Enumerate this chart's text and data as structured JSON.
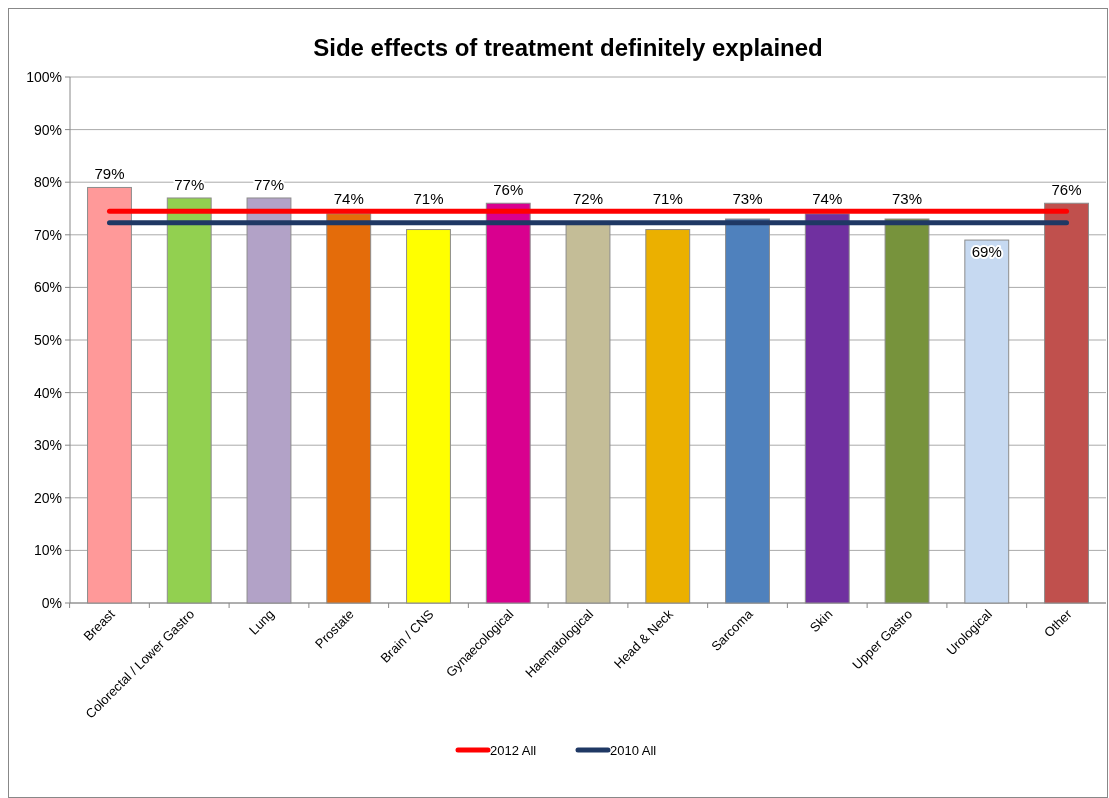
{
  "chart_data": {
    "type": "bar",
    "title": "Side effects of treatment definitely explained",
    "categories": [
      "Breast",
      "Colorectal / Lower Gastro",
      "Lung",
      "Prostate",
      "Brain / CNS",
      "Gynaecological",
      "Haematological",
      "Head & Neck",
      "Sarcoma",
      "Skin",
      "Upper Gastro",
      "Urological",
      "Other"
    ],
    "values": [
      79,
      77,
      77,
      74,
      71,
      76,
      72,
      71,
      73,
      74,
      73,
      69,
      76
    ],
    "colors": [
      "#ff9999",
      "#92d050",
      "#b2a2c7",
      "#e46c0a",
      "#ffff00",
      "#d9008f",
      "#c4bd97",
      "#ebb000",
      "#4f81bd",
      "#7030a0",
      "#77933c",
      "#c6d9f1",
      "#c0504d"
    ],
    "value_labels": [
      "79%",
      "77%",
      "77%",
      "74%",
      "71%",
      "76%",
      "72%",
      "71%",
      "73%",
      "74%",
      "73%",
      "69%",
      "76%"
    ],
    "series": [
      {
        "type": "line",
        "name": "2012 All",
        "color": "#ff0000",
        "values": [
          74.5,
          74.5,
          74.5,
          74.5,
          74.5,
          74.5,
          74.5,
          74.5,
          74.5,
          74.5,
          74.5,
          74.5,
          74.5
        ]
      },
      {
        "type": "line",
        "name": "2010 All",
        "color": "#1f3864",
        "values": [
          72.3,
          72.3,
          72.3,
          72.3,
          72.3,
          72.3,
          72.3,
          72.3,
          72.3,
          72.3,
          72.3,
          72.3,
          72.3
        ]
      }
    ],
    "ylim": [
      0,
      100
    ],
    "yticks": [
      {
        "value": 0,
        "label": "0%"
      },
      {
        "value": 10,
        "label": "10%"
      },
      {
        "value": 20,
        "label": "20%"
      },
      {
        "value": 30,
        "label": "30%"
      },
      {
        "value": 40,
        "label": "40%"
      },
      {
        "value": 50,
        "label": "50%"
      },
      {
        "value": 60,
        "label": "60%"
      },
      {
        "value": 70,
        "label": "70%"
      },
      {
        "value": 80,
        "label": "80%"
      },
      {
        "value": 90,
        "label": "90%"
      },
      {
        "value": 100,
        "label": "100%"
      }
    ],
    "grid": "y",
    "legend": "bottom",
    "marker": "none",
    "line_style": "solid"
  }
}
